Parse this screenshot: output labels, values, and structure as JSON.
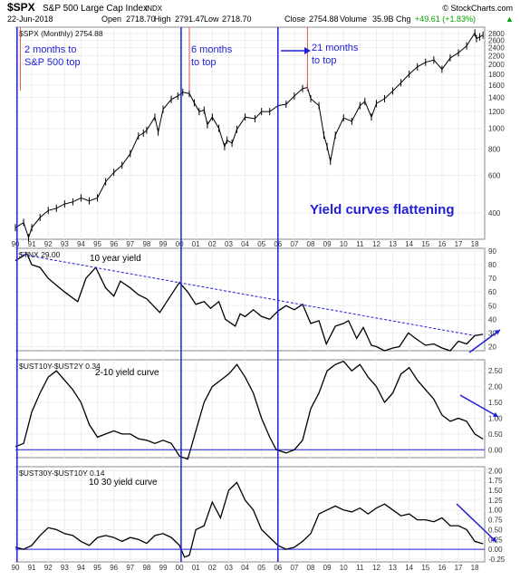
{
  "header": {
    "symbol": "$SPX",
    "name": "S&P 500 Large Cap Index",
    "exchange": "INDX",
    "date": "22-Jun-2018",
    "open_label": "Open",
    "open": "2718.70",
    "high_label": "High",
    "high": "2791.47",
    "low_label": "Low",
    "low": "2718.70",
    "close_label": "Close",
    "close": "2754.88",
    "volume_label": "Volume",
    "volume": "35.9B",
    "chg_label": "Chg",
    "chg": "+49.61 (+1.83%)",
    "chg_arrow": "▲",
    "credit": "© StockCharts.com",
    "up_color": "#00a000"
  },
  "chart_data": [
    {
      "type": "line",
      "panel": "spx",
      "legend": "$SPX (Monthly) 2754.88",
      "y_scale": "log",
      "ylim": [
        300,
        3000
      ],
      "y_ticks": [
        400,
        600,
        800,
        1000,
        1200,
        1400,
        1600,
        1800,
        2000,
        2200,
        2400,
        2600,
        2800
      ],
      "x_ticks": [
        "90",
        "91",
        "92",
        "93",
        "94",
        "95",
        "96",
        "97",
        "98",
        "99",
        "00",
        "01",
        "02",
        "03",
        "04",
        "05",
        "06",
        "07",
        "08",
        "09",
        "10",
        "11",
        "12",
        "13",
        "14",
        "15",
        "16",
        "17",
        "18"
      ],
      "xlim": [
        1990.0,
        2018.6
      ],
      "x": [
        1990.0,
        1990.5,
        1990.8,
        1991.0,
        1991.5,
        1992.0,
        1992.5,
        1993.0,
        1993.5,
        1994.0,
        1994.5,
        1995.0,
        1995.5,
        1996.0,
        1996.5,
        1997.0,
        1997.5,
        1997.8,
        1998.0,
        1998.5,
        1998.7,
        1999.0,
        1999.5,
        1999.9,
        2000.2,
        2000.6,
        2000.9,
        2001.2,
        2001.5,
        2001.7,
        2002.0,
        2002.4,
        2002.75,
        2002.9,
        2003.2,
        2003.5,
        2004.0,
        2004.6,
        2005.0,
        2005.5,
        2006.0,
        2006.5,
        2007.0,
        2007.5,
        2007.8,
        2008.0,
        2008.5,
        2008.8,
        2009.0,
        2009.2,
        2009.5,
        2010.0,
        2010.5,
        2011.0,
        2011.3,
        2011.7,
        2012.0,
        2012.5,
        2013.0,
        2013.5,
        2014.0,
        2014.5,
        2015.0,
        2015.5,
        2016.0,
        2016.5,
        2017.0,
        2017.5,
        2018.0,
        2018.1,
        2018.3,
        2018.5
      ],
      "values": [
        340,
        360,
        305,
        340,
        380,
        410,
        420,
        440,
        450,
        470,
        455,
        470,
        560,
        620,
        670,
        760,
        920,
        950,
        980,
        1130,
        960,
        1230,
        1370,
        1420,
        1480,
        1460,
        1320,
        1200,
        1220,
        1040,
        1130,
        1000,
        820,
        880,
        850,
        990,
        1130,
        1110,
        1200,
        1200,
        1280,
        1300,
        1420,
        1540,
        1560,
        1380,
        1280,
        930,
        820,
        700,
        930,
        1120,
        1080,
        1280,
        1340,
        1130,
        1310,
        1380,
        1500,
        1640,
        1800,
        1950,
        2050,
        2100,
        1900,
        2150,
        2270,
        2450,
        2820,
        2650,
        2700,
        2754
      ]
    },
    {
      "type": "line",
      "panel": "tnx",
      "legend": "$TNX 29.00",
      "ylim": [
        17,
        92
      ],
      "y_ticks": [
        20,
        30,
        40,
        50,
        60,
        70,
        80,
        90
      ],
      "xlim": [
        1990.0,
        2018.6
      ],
      "x": [
        1990.0,
        1990.7,
        1991.0,
        1991.5,
        1992.0,
        1992.5,
        1993.0,
        1993.8,
        1994.3,
        1994.9,
        1995.5,
        1996.0,
        1996.4,
        1997.0,
        1997.5,
        1998.0,
        1998.8,
        1999.5,
        2000.0,
        2000.5,
        2001.0,
        2001.5,
        2001.9,
        2002.4,
        2002.8,
        2003.4,
        2003.7,
        2004.0,
        2004.5,
        2005.0,
        2005.5,
        2006.0,
        2006.5,
        2007.0,
        2007.5,
        2008.0,
        2008.5,
        2008.95,
        2009.5,
        2010.0,
        2010.3,
        2010.8,
        2011.2,
        2011.7,
        2012.0,
        2012.5,
        2013.0,
        2013.4,
        2013.95,
        2014.5,
        2015.0,
        2015.5,
        2016.0,
        2016.5,
        2017.0,
        2017.5,
        2018.0,
        2018.5
      ],
      "values": [
        83,
        88,
        80,
        78,
        70,
        65,
        60,
        53,
        70,
        78,
        63,
        57,
        68,
        63,
        58,
        55,
        45,
        58,
        67,
        60,
        51,
        53,
        48,
        53,
        40,
        35,
        44,
        42,
        47,
        42,
        40,
        46,
        50,
        47,
        51,
        37,
        39,
        22,
        35,
        37,
        39,
        26,
        34,
        21,
        20,
        17,
        19,
        20,
        30,
        25,
        21,
        22,
        19,
        17,
        24,
        22,
        28,
        29
      ]
    },
    {
      "type": "line",
      "panel": "ust10y_ust2y",
      "legend": "$UST10Y-$UST2Y 0.34",
      "ylim": [
        -0.25,
        2.85
      ],
      "y_ticks": [
        0.0,
        0.5,
        1.0,
        1.5,
        2.0,
        2.5
      ],
      "xlim": [
        1990.0,
        2018.6
      ],
      "x": [
        1990.0,
        1990.5,
        1991.0,
        1991.5,
        1992.0,
        1992.5,
        1993.0,
        1993.5,
        1994.0,
        1994.5,
        1995.0,
        1995.5,
        1996.0,
        1996.5,
        1997.0,
        1997.5,
        1998.0,
        1998.5,
        1999.0,
        1999.5,
        2000.0,
        2000.5,
        2001.0,
        2001.5,
        2002.0,
        2002.5,
        2003.0,
        2003.5,
        2004.0,
        2004.5,
        2005.0,
        2005.5,
        2005.9,
        2006.5,
        2007.0,
        2007.5,
        2008.0,
        2008.5,
        2009.0,
        2009.5,
        2010.0,
        2010.5,
        2011.0,
        2011.5,
        2012.0,
        2012.5,
        2013.0,
        2013.5,
        2014.0,
        2014.5,
        2015.0,
        2015.5,
        2016.0,
        2016.5,
        2017.0,
        2017.5,
        2018.0,
        2018.5
      ],
      "values": [
        0.1,
        0.2,
        1.2,
        1.8,
        2.3,
        2.5,
        2.2,
        1.9,
        1.5,
        0.8,
        0.4,
        0.5,
        0.6,
        0.5,
        0.5,
        0.35,
        0.3,
        0.2,
        0.3,
        0.2,
        -0.2,
        -0.3,
        0.6,
        1.5,
        2.0,
        2.2,
        2.4,
        2.7,
        2.3,
        1.8,
        1.0,
        0.4,
        0.0,
        -0.1,
        0.0,
        0.3,
        1.3,
        1.8,
        2.5,
        2.7,
        2.8,
        2.5,
        2.7,
        2.3,
        2.0,
        1.5,
        1.8,
        2.4,
        2.6,
        2.2,
        1.9,
        1.6,
        1.1,
        0.9,
        1.0,
        0.9,
        0.5,
        0.34
      ]
    },
    {
      "type": "line",
      "panel": "ust30y_ust10y",
      "legend": "$UST30Y-$UST10Y 0.14",
      "ylim": [
        -0.32,
        2.1
      ],
      "y_ticks": [
        -0.25,
        0.0,
        0.25,
        0.5,
        0.75,
        1.0,
        1.25,
        1.5,
        1.75,
        2.0
      ],
      "xlim": [
        1990.0,
        2018.6
      ],
      "x": [
        1990.0,
        1990.5,
        1991.0,
        1991.5,
        1992.0,
        1992.5,
        1993.0,
        1993.5,
        1994.0,
        1994.5,
        1995.0,
        1995.5,
        1996.0,
        1996.5,
        1997.0,
        1997.5,
        1998.0,
        1998.5,
        1999.0,
        1999.5,
        2000.0,
        2000.3,
        2000.6,
        2001.0,
        2001.5,
        2002.0,
        2002.5,
        2003.0,
        2003.5,
        2004.0,
        2004.5,
        2005.0,
        2005.5,
        2006.0,
        2006.5,
        2007.0,
        2007.5,
        2008.0,
        2008.5,
        2009.0,
        2009.5,
        2010.0,
        2010.5,
        2011.0,
        2011.5,
        2012.0,
        2012.5,
        2013.0,
        2013.5,
        2014.0,
        2014.5,
        2015.0,
        2015.5,
        2016.0,
        2016.5,
        2017.0,
        2017.5,
        2018.0,
        2018.5
      ],
      "values": [
        0.05,
        0.0,
        0.1,
        0.35,
        0.55,
        0.5,
        0.4,
        0.35,
        0.2,
        0.1,
        0.3,
        0.35,
        0.3,
        0.2,
        0.3,
        0.25,
        0.15,
        0.35,
        0.4,
        0.3,
        0.1,
        -0.2,
        -0.15,
        0.5,
        0.6,
        1.2,
        0.8,
        1.5,
        1.7,
        1.25,
        1.0,
        0.5,
        0.3,
        0.1,
        0.0,
        0.05,
        0.2,
        0.4,
        0.9,
        1.0,
        1.1,
        1.0,
        0.95,
        1.05,
        0.9,
        1.05,
        1.15,
        1.0,
        0.85,
        0.9,
        0.75,
        0.75,
        0.7,
        0.8,
        0.6,
        0.6,
        0.5,
        0.2,
        0.14
      ]
    }
  ],
  "annotations": {
    "spx_1": "2 months to\nS&P 500 top",
    "spx_2": "6 months\nto top",
    "spx_3": "21 months\nto top",
    "spx_main": "Yield curves flattening",
    "tnx": "10 year yield",
    "curve_2_10": "2-10 yield curve",
    "curve_10_30": "10 30 yield curve"
  },
  "vertical_markers": {
    "blue_x": [
      1990.1,
      2000.1,
      2006.0
    ],
    "red_x": [
      1990.3,
      2000.6,
      2007.8
    ]
  },
  "colors": {
    "accent_blue": "#1f1fd6",
    "marker_red": "#e05050",
    "price": "#000000",
    "axis": "#6a6a6a"
  }
}
